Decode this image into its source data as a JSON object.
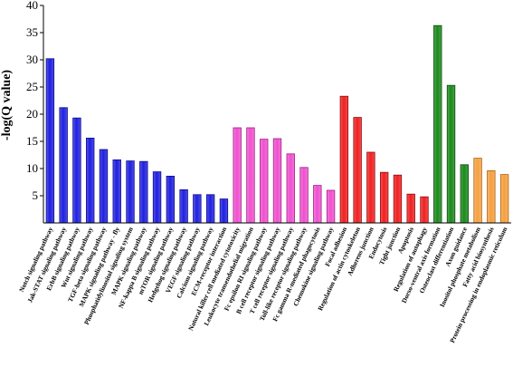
{
  "chart_data": {
    "type": "bar",
    "title": "",
    "xlabel": "",
    "ylabel": "-log(Q value)",
    "ylim": [
      0,
      40
    ],
    "yticks": [
      5,
      10,
      15,
      20,
      25,
      30,
      35,
      40
    ],
    "grid": false,
    "legend": "none",
    "categories": [
      "Notch signaling pathway",
      "Jak-STAT signaling pathway",
      "ErbB signaling pathway",
      "Wnt signaling pathway",
      "TGF-beta signaling pathway",
      "MAPK signaling pathway - fly",
      "Phosphatidylinositol signaling system",
      "MAPK signaling pathway",
      "NF-kappa B signaling pathway",
      "mTOR signaling pathway",
      "Hedgehog signaling pathway",
      "VEGF signaling pathway",
      "Calcium signaling pathway",
      "ECM-receptor interaction",
      "Natural killer cell mediated cytotoxicity",
      "Leukocyte transendothelial migration",
      "Fc epsilon RI signaling pathway",
      "B cell receptor signaling pathway",
      "T cell receptor signaling pathway",
      "Toll-like receptor signaling pathway",
      "Fc gamma R-mediated phagocytosis",
      "Chemokine signaling pathway",
      "Focal adhesion",
      "Regulation of actin cytoskeleton",
      "Adherens junction",
      "Endocytosis",
      "Tight junction",
      "Apoptosis",
      "Regulation of autophagy",
      "Dorso-ventral axis formation",
      "Osteoclast differentiation",
      "Axon guidance",
      "Inositol phosphate metabolism",
      "Fatty acid biosynthesis",
      "Protein processing in endoplasmic reticulum"
    ],
    "values": [
      30.2,
      21.2,
      19.3,
      15.6,
      13.5,
      11.6,
      11.4,
      11.3,
      9.4,
      8.6,
      6.1,
      5.2,
      5.2,
      4.4,
      17.5,
      17.5,
      15.4,
      15.5,
      12.7,
      10.2,
      6.9,
      6.0,
      23.3,
      19.4,
      13.0,
      9.3,
      8.8,
      5.3,
      4.8,
      36.3,
      25.3,
      10.7,
      11.9,
      9.6,
      8.9
    ],
    "bar_colors": [
      "#2020e0",
      "#2020e0",
      "#2020e0",
      "#2020e0",
      "#2020e0",
      "#2020e0",
      "#2020e0",
      "#2020e0",
      "#2020e0",
      "#2020e0",
      "#2020e0",
      "#2020e0",
      "#2020e0",
      "#2020e0",
      "#f050d0",
      "#f050d0",
      "#f050d0",
      "#f050d0",
      "#f050d0",
      "#f050d0",
      "#f050d0",
      "#f050d0",
      "#f02020",
      "#f02020",
      "#f02020",
      "#f02020",
      "#f02020",
      "#f02020",
      "#f02020",
      "#1a8a1a",
      "#1a8a1a",
      "#1a8a1a",
      "#f5a040",
      "#f5a040",
      "#f5a040"
    ],
    "bar_edge_colors": [
      "#0a0a90",
      "#0a0a90",
      "#0a0a90",
      "#0a0a90",
      "#0a0a90",
      "#0a0a90",
      "#0a0a90",
      "#0a0a90",
      "#0a0a90",
      "#0a0a90",
      "#0a0a90",
      "#0a0a90",
      "#0a0a90",
      "#0a0a90",
      "#a02080",
      "#a02080",
      "#a02080",
      "#a02080",
      "#a02080",
      "#a02080",
      "#a02080",
      "#a02080",
      "#900a0a",
      "#900a0a",
      "#900a0a",
      "#900a0a",
      "#900a0a",
      "#900a0a",
      "#900a0a",
      "#0a4a0a",
      "#0a4a0a",
      "#0a4a0a",
      "#b06010",
      "#b06010",
      "#b06010"
    ]
  }
}
